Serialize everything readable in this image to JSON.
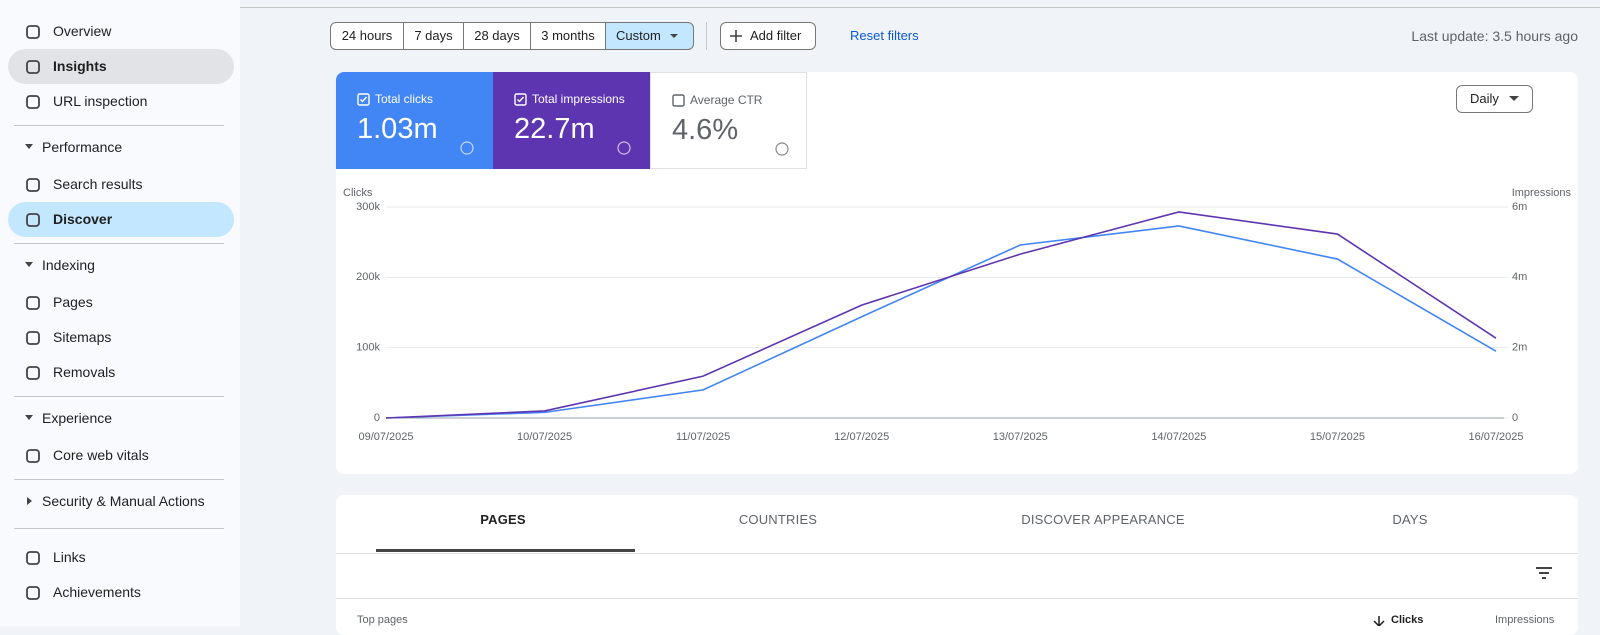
{
  "sidebar": {
    "groups": [
      {
        "items": [
          {
            "label": "Overview"
          },
          {
            "label": "Insights",
            "hover": true
          },
          {
            "label": "URL inspection"
          }
        ]
      },
      {
        "heading": "Performance",
        "expanded": true,
        "items": [
          {
            "label": "Search results"
          },
          {
            "label": "Discover",
            "active": true
          }
        ]
      },
      {
        "heading": "Indexing",
        "expanded": true,
        "items": [
          {
            "label": "Pages"
          },
          {
            "label": "Sitemaps"
          },
          {
            "label": "Removals"
          }
        ]
      },
      {
        "heading": "Experience",
        "expanded": true,
        "items": [
          {
            "label": "Core web vitals"
          }
        ]
      },
      {
        "heading": "Security & Manual Actions",
        "expanded": false,
        "items": []
      },
      {
        "items": [
          {
            "label": "Links"
          },
          {
            "label": "Achievements"
          }
        ]
      }
    ]
  },
  "toolbar": {
    "ranges": [
      "24 hours",
      "7 days",
      "28 days",
      "3 months",
      "Custom"
    ],
    "active_range": 4,
    "add_filter": "Add filter",
    "reset_filters": "Reset filters",
    "last_update": "Last update: 3.5 hours ago"
  },
  "metrics": [
    {
      "label": "Total clicks",
      "value": "1.03m",
      "checked": true,
      "color": "#4285f4"
    },
    {
      "label": "Total impressions",
      "value": "22.7m",
      "checked": true,
      "color": "#5e35b1"
    },
    {
      "label": "Average CTR",
      "value": "4.6%",
      "checked": false
    }
  ],
  "granularity": "Daily",
  "chart_data": {
    "type": "line",
    "y_label": "Clicks",
    "y2_label": "Impressions",
    "x": [
      "09/07/2025",
      "10/07/2025",
      "11/07/2025",
      "12/07/2025",
      "13/07/2025",
      "14/07/2025",
      "15/07/2025",
      "16/07/2025"
    ],
    "series": [
      {
        "name": "Clicks",
        "color": "#4285f4",
        "values": [
          0,
          8000,
          40000,
          144000,
          246000,
          273000,
          226000,
          95000
        ]
      },
      {
        "name": "Impressions",
        "color": "#5e35b1",
        "axis": "y2",
        "values": [
          0,
          200000,
          1190000,
          3210000,
          4660000,
          5860000,
          5230000,
          2270000
        ]
      }
    ],
    "ylim": [
      0,
      300000
    ],
    "yticks": [
      0,
      {
        "value": 100000,
        "label": "100k"
      },
      {
        "value": 200000,
        "label": "200k"
      },
      {
        "value": 300000,
        "label": "300k"
      }
    ],
    "y2lim": [
      0,
      6000000
    ],
    "y2ticks": [
      0,
      {
        "value": 2000000,
        "label": "2m"
      },
      {
        "value": 4000000,
        "label": "4m"
      },
      {
        "value": 6000000,
        "label": "6m"
      }
    ],
    "grid": true
  },
  "tabs": [
    "PAGES",
    "COUNTRIES",
    "DISCOVER APPEARANCE",
    "DAYS"
  ],
  "active_tab": 0,
  "table": {
    "title": "Top pages",
    "columns": [
      "Clicks",
      "Impressions"
    ]
  }
}
